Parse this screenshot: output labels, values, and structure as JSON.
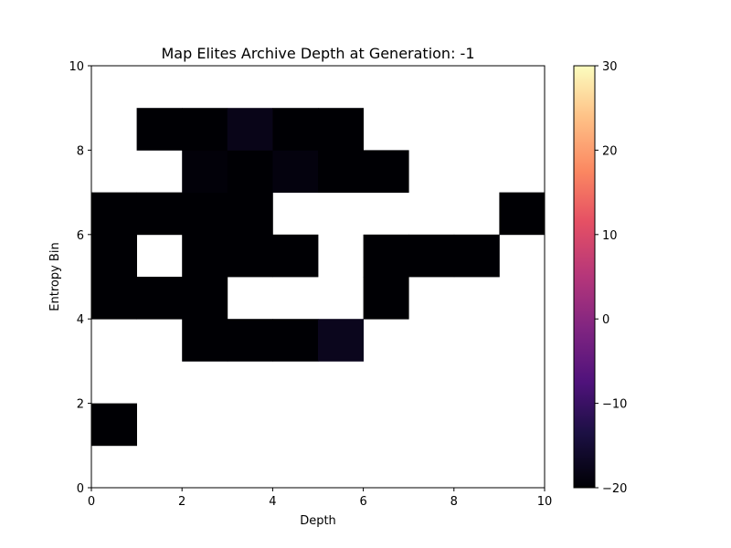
{
  "chart_data": {
    "type": "heatmap",
    "title": "Map Elites Archive Depth at Generation: -1",
    "xlabel": "Depth",
    "ylabel": "Entropy Bin",
    "xlim": [
      0,
      10
    ],
    "ylim": [
      0,
      10
    ],
    "xticks": [
      "0",
      "2",
      "4",
      "6",
      "8",
      "10"
    ],
    "yticks": [
      "0",
      "2",
      "4",
      "6",
      "8",
      "10"
    ],
    "colormap": "magma",
    "colorbar": {
      "range": [
        -20,
        30
      ],
      "ticks": [
        "30",
        "20",
        "10",
        "0",
        "−10",
        "−20"
      ]
    },
    "cells": [
      {
        "x": 0,
        "y": 1,
        "value": -20
      },
      {
        "x": 2,
        "y": 3,
        "value": -20
      },
      {
        "x": 3,
        "y": 3,
        "value": -20
      },
      {
        "x": 4,
        "y": 3,
        "value": -20
      },
      {
        "x": 5,
        "y": 3,
        "value": -17.5
      },
      {
        "x": 0,
        "y": 4,
        "value": -20
      },
      {
        "x": 1,
        "y": 4,
        "value": -20
      },
      {
        "x": 2,
        "y": 4,
        "value": -20
      },
      {
        "x": 6,
        "y": 4,
        "value": -20
      },
      {
        "x": 0,
        "y": 5,
        "value": -20
      },
      {
        "x": 2,
        "y": 5,
        "value": -20
      },
      {
        "x": 3,
        "y": 5,
        "value": -20
      },
      {
        "x": 4,
        "y": 5,
        "value": -20
      },
      {
        "x": 6,
        "y": 5,
        "value": -20
      },
      {
        "x": 7,
        "y": 5,
        "value": -20
      },
      {
        "x": 8,
        "y": 5,
        "value": -20
      },
      {
        "x": 0,
        "y": 6,
        "value": -20
      },
      {
        "x": 1,
        "y": 6,
        "value": -20
      },
      {
        "x": 2,
        "y": 6,
        "value": -20
      },
      {
        "x": 3,
        "y": 6,
        "value": -20
      },
      {
        "x": 9,
        "y": 6,
        "value": -20
      },
      {
        "x": 2,
        "y": 7,
        "value": -19.5
      },
      {
        "x": 3,
        "y": 7,
        "value": -20
      },
      {
        "x": 4,
        "y": 7,
        "value": -19
      },
      {
        "x": 5,
        "y": 7,
        "value": -20
      },
      {
        "x": 6,
        "y": 7,
        "value": -20
      },
      {
        "x": 1,
        "y": 8,
        "value": -20
      },
      {
        "x": 2,
        "y": 8,
        "value": -20
      },
      {
        "x": 3,
        "y": 8,
        "value": -18
      },
      {
        "x": 4,
        "y": 8,
        "value": -20
      },
      {
        "x": 5,
        "y": 8,
        "value": -20
      }
    ]
  }
}
